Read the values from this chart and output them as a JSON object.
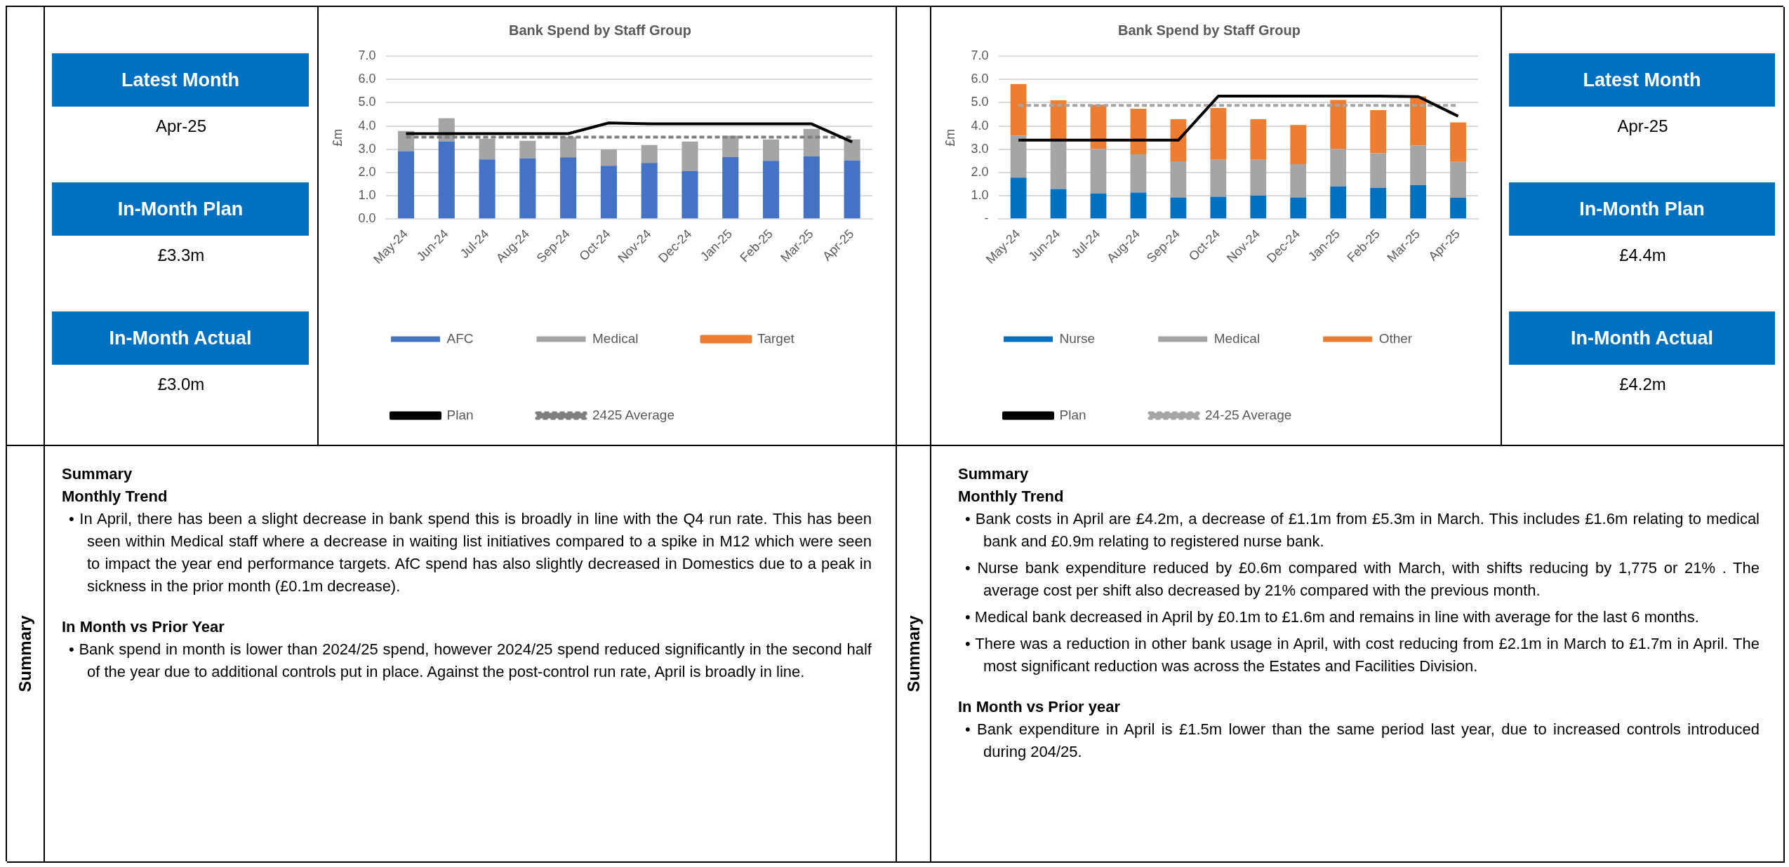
{
  "chart_data": [
    {
      "type": "other",
      "title": "Latest Month",
      "annotations": [
        "Apr-25"
      ]
    },
    {
      "type": "other",
      "title": "In-Month Plan",
      "annotations": [
        "£3.3m"
      ]
    },
    {
      "type": "other",
      "title": "In-Month Actual",
      "annotations": [
        "£3.0m"
      ]
    },
    {
      "type": "bar",
      "title": "Bank Spend by Staff Group",
      "ylabel": "£m",
      "stacked": true,
      "grid": "y",
      "legend": "bottom",
      "marker": "none",
      "categories": [
        "May-24",
        "Jun-24",
        "Jul-24",
        "Aug-24",
        "Sep-24",
        "Oct-24",
        "Nov-24",
        "Dec-24",
        "Jan-25",
        "Feb-25",
        "Mar-25",
        "Apr-25"
      ],
      "ylim": [
        0,
        7
      ],
      "yticks": [
        {
          "value": 0,
          "label": "0.0"
        },
        {
          "value": 1,
          "label": "1.0"
        },
        {
          "value": 2,
          "label": "2.0"
        },
        {
          "value": 3,
          "label": "3.0"
        },
        {
          "value": 4,
          "label": "4.0"
        },
        {
          "value": 5,
          "label": "5.0"
        },
        {
          "value": 6,
          "label": "6.0"
        },
        {
          "value": 7,
          "label": "7.0"
        }
      ],
      "series": [
        {
          "name": "AFC",
          "color": "#4472c4",
          "values": [
            2.92,
            3.34,
            2.56,
            2.61,
            2.65,
            2.29,
            2.41,
            2.06,
            2.67,
            2.5,
            2.7,
            2.52
          ]
        },
        {
          "name": "Medical",
          "color": "#a5a5a5",
          "values": [
            0.86,
            0.99,
            0.89,
            0.75,
            0.88,
            0.7,
            0.77,
            1.27,
            0.91,
            0.92,
            1.17,
            0.9
          ]
        },
        {
          "name": "Target",
          "type": "line",
          "color": "#ed7d31",
          "values": [
            null,
            null,
            null,
            null,
            null,
            null,
            null,
            null,
            null,
            null,
            null,
            null
          ]
        },
        {
          "name": "Plan",
          "type": "line",
          "color": "#000000",
          "values": [
            3.67,
            3.67,
            3.67,
            3.67,
            3.67,
            4.13,
            4.09,
            4.09,
            4.09,
            4.09,
            4.09,
            3.31
          ]
        },
        {
          "name": "2425 Average",
          "type": "line",
          "line_style": "dashed",
          "color": "#7f7f7f",
          "values": [
            3.52,
            3.52,
            3.52,
            3.52,
            3.52,
            3.52,
            3.52,
            3.52,
            3.52,
            3.52,
            3.52,
            3.52
          ]
        }
      ]
    },
    {
      "type": "bar",
      "title": "Bank Spend by Staff Group",
      "ylabel": "£m",
      "stacked": true,
      "grid": "y",
      "legend": "bottom",
      "marker": "none",
      "categories": [
        "May-24",
        "Jun-24",
        "Jul-24",
        "Aug-24",
        "Sep-24",
        "Oct-24",
        "Nov-24",
        "Dec-24",
        "Jan-25",
        "Feb-25",
        "Mar-25",
        "Apr-25"
      ],
      "ylim": [
        0,
        7
      ],
      "yticks": [
        {
          "value": 0,
          "label": "-"
        },
        {
          "value": 1,
          "label": "1.0"
        },
        {
          "value": 2,
          "label": "2.0"
        },
        {
          "value": 3,
          "label": "3.0"
        },
        {
          "value": 4,
          "label": "4.0"
        },
        {
          "value": 5,
          "label": "5.0"
        },
        {
          "value": 6,
          "label": "6.0"
        },
        {
          "value": 7,
          "label": "7.0"
        }
      ],
      "series": [
        {
          "name": "Nurse",
          "color": "#0070c0",
          "values": [
            1.78,
            1.29,
            1.1,
            1.14,
            0.93,
            0.96,
            1.01,
            0.93,
            1.4,
            1.34,
            1.46,
            0.91
          ]
        },
        {
          "name": "Medical",
          "color": "#a5a5a5",
          "values": [
            1.81,
            2.11,
            1.91,
            1.64,
            1.55,
            1.59,
            1.54,
            1.43,
            1.61,
            1.49,
            1.7,
            1.55
          ]
        },
        {
          "name": "Other",
          "color": "#ed7d31",
          "values": [
            2.21,
            1.7,
            1.9,
            1.96,
            1.81,
            2.22,
            1.74,
            1.68,
            2.11,
            1.85,
            2.11,
            1.69
          ]
        },
        {
          "name": "Plan",
          "type": "line",
          "color": "#000000",
          "values": [
            3.39,
            3.39,
            3.39,
            3.39,
            3.39,
            5.28,
            5.28,
            5.28,
            5.28,
            5.28,
            5.26,
            4.42
          ]
        },
        {
          "name": "24-25 Average",
          "type": "line",
          "line_style": "dashed",
          "color": "#a5a5a5",
          "values": [
            4.88,
            4.88,
            4.88,
            4.88,
            4.88,
            4.88,
            4.88,
            4.88,
            4.88,
            4.88,
            4.88,
            4.88
          ]
        }
      ]
    },
    {
      "type": "other",
      "title": "Latest Month",
      "annotations": [
        "Apr-25"
      ]
    },
    {
      "type": "other",
      "title": "In-Month Plan",
      "annotations": [
        "£4.4m"
      ]
    },
    {
      "type": "other",
      "title": "In-Month Actual",
      "annotations": [
        "£4.2m"
      ]
    },
    {
      "type": "other",
      "title": "Summary",
      "ylabel": "Summary",
      "subtitle": "Monthly Trend",
      "annotations": [
        "•   In April, there has been a slight decrease in bank spend this is broadly in line with the Q4 run rate. This has been seen within Medical staff where a decrease in waiting list initiatives compared to a spike in M12 which were seen to impact the year end performance targets. AfC spend has also slightly decreased in Domestics due to a peak in sickness in the prior month (£0.1m decrease)."
      ]
    },
    {
      "type": "other",
      "subtitle": "In Month vs Prior Year",
      "annotations": [
        "•   Bank spend in month is lower than 2024/25 spend, however 2024/25 spend reduced significantly in the second half of the year due to additional controls put in place. Against the post-control run rate, April is broadly in line."
      ]
    },
    {
      "type": "other",
      "title": "Summary",
      "ylabel": "Summary",
      "subtitle": "Monthly Trend",
      "annotations": [
        "•   Bank costs in April are £4.2m, a decrease of £1.1m from £5.3m in March. This includes £1.6m relating to medical bank and £0.9m relating to registered nurse bank.",
        "•   Nurse bank expenditure reduced by £0.6m compared with March, with shifts reducing by 1,775 or 21% . The average cost per shift also decreased by 21% compared with the previous month.",
        "•   Medical bank decreased in April by £0.1m to £1.6m and remains in line with average for the last 6 months.",
        "•   There was a reduction in other bank usage in April, with cost reducing from £2.1m in March to £1.7m in April. The most significant reduction was across the Estates and Facilities Division."
      ]
    },
    {
      "type": "other",
      "subtitle": "In Month vs Prior year",
      "annotations": [
        "•   Bank expenditure in April is £1.5m lower than the same period last year, due to increased controls introduced during 204/25."
      ]
    }
  ]
}
